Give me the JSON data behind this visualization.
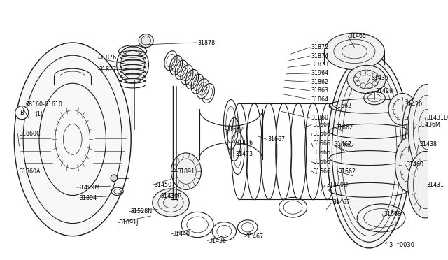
{
  "bg_color": "#ffffff",
  "line_color": "#1a1a1a",
  "fig_width": 6.4,
  "fig_height": 3.72,
  "dpi": 100,
  "watermark": "^3  *0030",
  "label_fontsize": 5.8,
  "note_B": "B",
  "note_bolt": "08160-61610",
  "note_1": "(1)"
}
